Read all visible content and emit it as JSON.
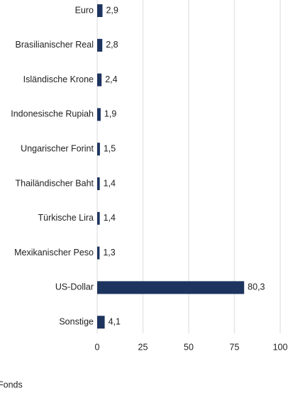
{
  "chart_data": {
    "type": "bar",
    "orientation": "horizontal",
    "categories": [
      "Euro",
      "Brasilianischer Real",
      "Isländische Krone",
      "Indonesische Rupiah",
      "Ungarischer Forint",
      "Thailändischer Baht",
      "Türkische Lira",
      "Mexikanischer Peso",
      "US-Dollar",
      "Sonstige"
    ],
    "series": [
      {
        "name": "Fonds",
        "color": "#1d345f",
        "values": [
          2.9,
          2.8,
          2.4,
          1.9,
          1.5,
          1.4,
          1.4,
          1.3,
          80.3,
          4.1
        ],
        "value_labels": [
          "2,9",
          "2,8",
          "2,4",
          "1,9",
          "1,5",
          "1,4",
          "1,4",
          "1,3",
          "80,3",
          "4,1"
        ]
      }
    ],
    "xlim": [
      0,
      100
    ],
    "xticks": [
      0,
      25,
      50,
      75,
      100
    ],
    "grid": true
  }
}
